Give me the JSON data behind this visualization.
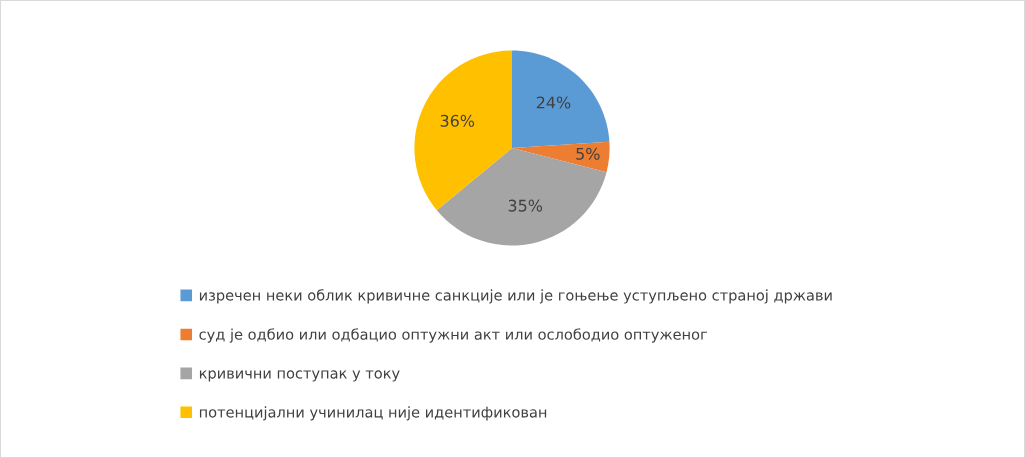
{
  "chart_data": {
    "type": "pie",
    "categories": [
      "изречен неки облик кривичне санкције или је гоњење уступљено страној држави",
      "суд је одбио или одбацио оптужни акт или ослободио оптуженог",
      "кривични поступак у току",
      "потенцијални учинилац није идентификован"
    ],
    "values": [
      24,
      5,
      35,
      36
    ],
    "colors": [
      "#5b9bd5",
      "#ed7d31",
      "#a5a5a5",
      "#ffc000"
    ],
    "value_labels": [
      "24%",
      "5%",
      "35%",
      "36%"
    ],
    "legend": "bottom"
  }
}
